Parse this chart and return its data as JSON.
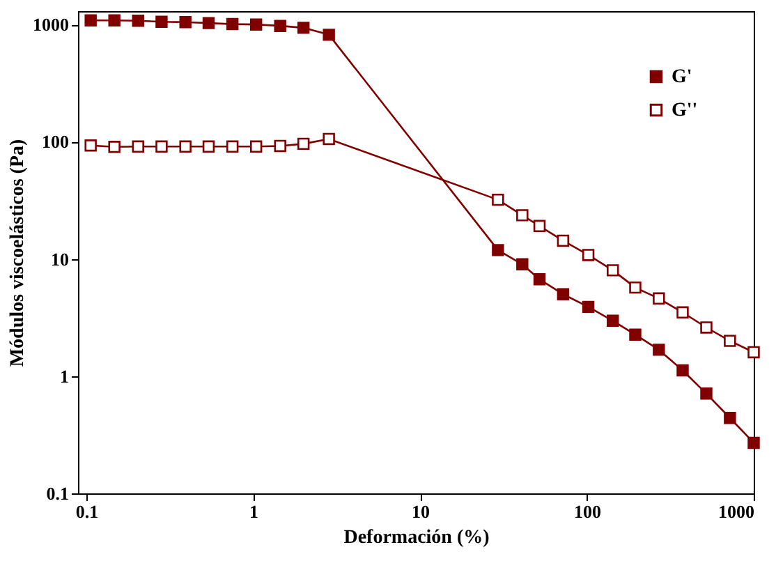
{
  "chart_data": {
    "type": "line",
    "xlabel": "Deformación (%)",
    "ylabel": "Módulos viscoelásticos (Pa)",
    "log": "xy",
    "xlim": [
      0.089,
      1000
    ],
    "ylim": [
      0.1,
      1300
    ],
    "xticks": [
      0.1,
      1,
      10,
      100,
      1000
    ],
    "yticks": [
      0.1,
      1,
      10,
      100,
      1000
    ],
    "grid": false,
    "legend": "top right",
    "marker": "square",
    "series": [
      {
        "name": "G'",
        "color": "#800000",
        "x": [
          0.106,
          0.147,
          0.204,
          0.282,
          0.392,
          0.54,
          0.75,
          1.04,
          1.45,
          2.0,
          2.84,
          29.3,
          41,
          52,
          72,
          102,
          143,
          195,
          270,
          375,
          520,
          720,
          1000
        ],
        "values": [
          1085,
          1085,
          1077,
          1056,
          1048,
          1028,
          1008,
          1000,
          973,
          938,
          818,
          11.9,
          9.0,
          6.7,
          5.0,
          3.9,
          2.97,
          2.26,
          1.68,
          1.12,
          0.71,
          0.44,
          0.27
        ]
      },
      {
        "name": "G''",
        "color": "#800000",
        "x": [
          0.106,
          0.147,
          0.204,
          0.282,
          0.392,
          0.54,
          0.75,
          1.04,
          1.45,
          2.0,
          2.84,
          29.3,
          41,
          52,
          72,
          102,
          143,
          195,
          270,
          375,
          520,
          720,
          1000
        ],
        "values": [
          92.9,
          90.4,
          91,
          91,
          91,
          91,
          91,
          91,
          92,
          96,
          105.5,
          32,
          23.6,
          19.1,
          14.3,
          10.8,
          8.0,
          5.7,
          4.6,
          3.5,
          2.6,
          2.0,
          1.6
        ]
      }
    ]
  }
}
